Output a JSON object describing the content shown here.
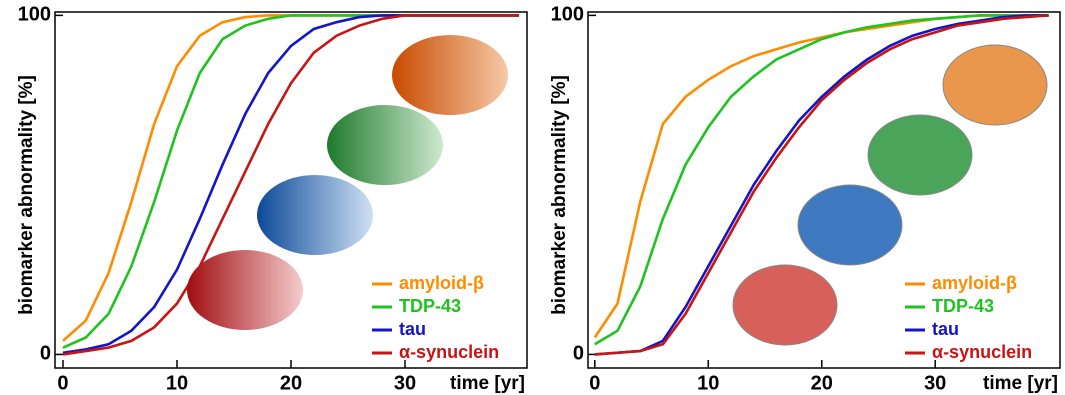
{
  "chart_data": [
    {
      "type": "line",
      "y_label": "biomarker abnormality [%]",
      "x_label": "time [yr]",
      "x": [
        0,
        2,
        4,
        6,
        8,
        10,
        12,
        14,
        16,
        18,
        20,
        22,
        24,
        26,
        28,
        30,
        32,
        34,
        36,
        38,
        40
      ],
      "xlim": [
        -0.7,
        40.7
      ],
      "ylim": [
        -4,
        101
      ],
      "xticks": [
        0,
        10,
        20,
        30
      ],
      "yticks": [
        0,
        100
      ],
      "legend": "lower right",
      "series": [
        {
          "name": "amyloid-β",
          "color": "#ff8c00",
          "values": [
            4,
            10,
            24,
            45,
            68,
            85,
            94,
            98,
            99.5,
            100,
            100,
            100,
            100,
            100,
            100,
            100,
            100,
            100,
            100,
            100,
            100
          ]
        },
        {
          "name": "TDP-43",
          "color": "#1fc31f",
          "values": [
            2,
            5,
            12,
            26,
            45,
            66,
            83,
            93,
            97,
            99,
            100,
            100,
            100,
            100,
            100,
            100,
            100,
            100,
            100,
            100,
            100
          ]
        },
        {
          "name": "tau",
          "color": "#1414c8",
          "values": [
            0.5,
            1.5,
            3,
            7,
            14,
            25,
            40,
            56,
            71,
            83,
            91,
            96,
            98,
            99.5,
            100,
            100,
            100,
            100,
            100,
            100,
            100
          ]
        },
        {
          "name": "α-synuclein",
          "color": "#c81414",
          "values": [
            0,
            1,
            2,
            4,
            8,
            15,
            26,
            40,
            54,
            68,
            80,
            89,
            94,
            97,
            99,
            100,
            100,
            100,
            100,
            100,
            100
          ]
        }
      ]
    },
    {
      "type": "line",
      "y_label": "biomarker abnormality [%]",
      "x_label": "time [yr]",
      "x": [
        0,
        2,
        4,
        6,
        8,
        10,
        12,
        14,
        16,
        18,
        20,
        22,
        24,
        26,
        28,
        30,
        32,
        34,
        36,
        38,
        40
      ],
      "xlim": [
        -0.6,
        41
      ],
      "ylim": [
        -4,
        101
      ],
      "xticks": [
        0,
        10,
        20,
        30
      ],
      "yticks": [
        0,
        100
      ],
      "legend": "lower right",
      "series": [
        {
          "name": "amyloid-β",
          "color": "#ff8c00",
          "values": [
            5,
            15,
            45,
            68,
            76,
            81,
            85,
            88,
            90,
            92,
            93.5,
            95,
            96,
            97,
            98,
            99,
            99.5,
            100,
            100,
            100,
            100
          ]
        },
        {
          "name": "TDP-43",
          "color": "#1fc31f",
          "values": [
            3,
            7,
            20,
            40,
            56,
            67,
            76,
            82,
            87,
            90,
            93,
            95,
            96.5,
            97.5,
            98.5,
            99,
            99.5,
            100,
            100,
            100,
            100
          ]
        },
        {
          "name": "tau",
          "color": "#1414c8",
          "values": [
            0,
            0.5,
            1,
            4,
            14,
            26,
            38,
            50,
            60,
            69,
            76,
            82,
            87,
            91,
            94,
            96,
            97.5,
            98.5,
            99.5,
            100,
            100
          ]
        },
        {
          "name": "α-synuclein",
          "color": "#c81414",
          "values": [
            0,
            0.5,
            1,
            3,
            12,
            24,
            36,
            48,
            58,
            67,
            75,
            81,
            86,
            90,
            93,
            95,
            97,
            98,
            99,
            99.5,
            100
          ]
        }
      ]
    }
  ]
}
